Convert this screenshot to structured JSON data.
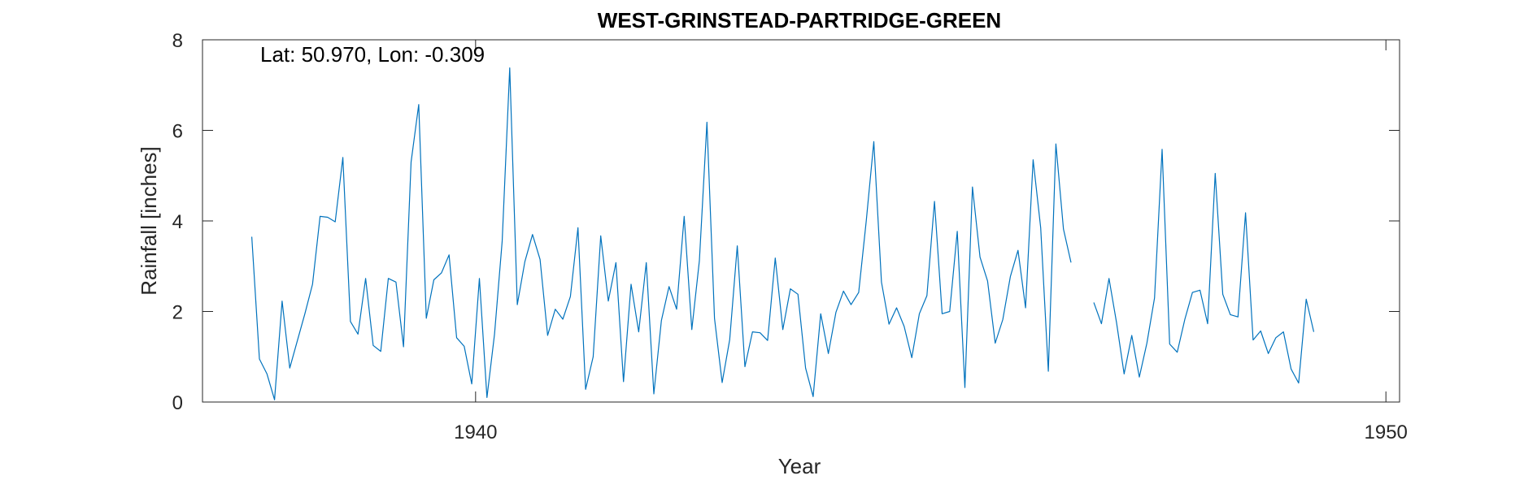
{
  "chart_data": {
    "type": "line",
    "title": "WEST-GRINSTEAD-PARTRIDGE-GREEN",
    "annotation": "Lat: 50.970, Lon: -0.309",
    "xlabel": "Year",
    "ylabel": "Rainfall [inches]",
    "xlim": [
      1937.0,
      1950.15
    ],
    "ylim": [
      0,
      8
    ],
    "xticks": [
      1940,
      1950
    ],
    "yticks": [
      0,
      2,
      4,
      6,
      8
    ],
    "grid": false,
    "line_color": "#0072bd",
    "series": [
      {
        "values": [
          3.65,
          0.95,
          0.62,
          0.05,
          2.23,
          0.75,
          1.35,
          1.95,
          2.6,
          4.1,
          4.08,
          3.98,
          5.4,
          1.78,
          1.5,
          2.73,
          1.25,
          1.12,
          2.73,
          2.65,
          1.22,
          5.3,
          6.57,
          1.85,
          2.7,
          2.85,
          3.25,
          1.42,
          1.23,
          0.4,
          2.73,
          0.1,
          1.5,
          3.55,
          7.38,
          2.15,
          3.1,
          3.7,
          3.15,
          1.47,
          2.05,
          1.83,
          2.33,
          3.85,
          0.28,
          1.0,
          3.67,
          2.23,
          3.08,
          0.45,
          2.6,
          1.55,
          3.08,
          0.18,
          1.8,
          2.55,
          2.05,
          4.1,
          1.6,
          3.12,
          6.18,
          1.85,
          0.43,
          1.38,
          3.45,
          0.78,
          1.55,
          1.53,
          1.36,
          3.18,
          1.6,
          2.5,
          2.38,
          0.75,
          0.12,
          1.95,
          1.07,
          1.98,
          2.45,
          2.15,
          2.42,
          4.0,
          5.75,
          2.65,
          1.72,
          2.08,
          1.67,
          0.98,
          1.95,
          2.35,
          4.43,
          1.95,
          2.0,
          3.77,
          0.32,
          4.75,
          3.2,
          2.67,
          1.3,
          1.82,
          2.77,
          3.35,
          2.08,
          5.35,
          3.85,
          0.68,
          5.7,
          3.82,
          3.08,
          null,
          null,
          2.2,
          1.73,
          2.73,
          1.75,
          0.62,
          1.47,
          0.55,
          1.3,
          2.3,
          5.58,
          1.28,
          1.1,
          1.83,
          2.42,
          2.47,
          1.73,
          5.05,
          2.38,
          1.93,
          1.88,
          4.18,
          1.37,
          1.57,
          1.07,
          1.42,
          1.55,
          0.73,
          0.42,
          2.27,
          1.55
        ]
      }
    ],
    "x_start_year": 1937.5417,
    "x_step_years": 0.08333
  }
}
